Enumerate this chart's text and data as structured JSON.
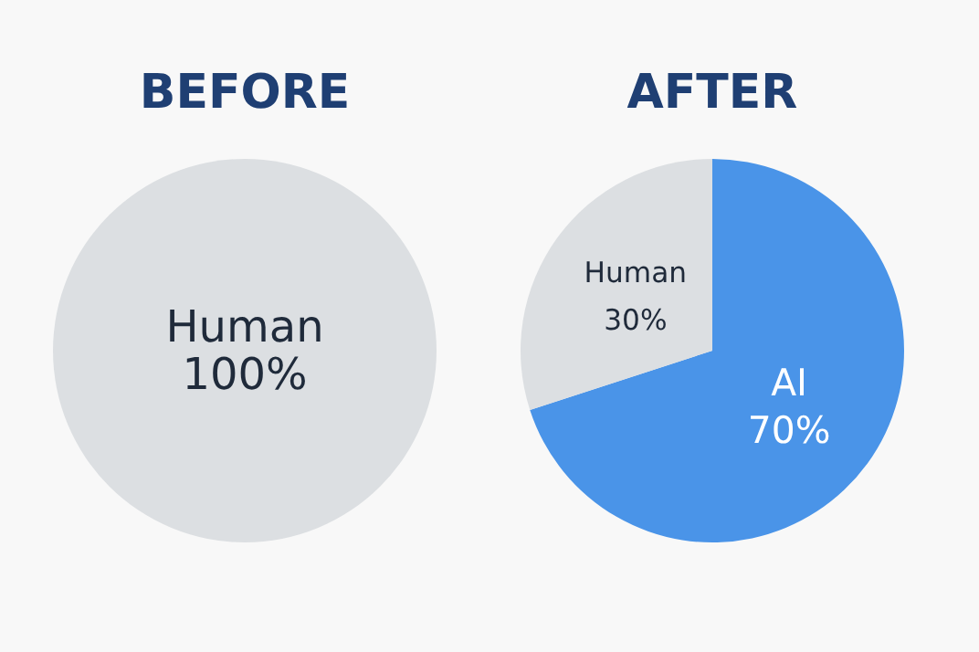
{
  "chart_data": [
    {
      "type": "pie",
      "title": "BEFORE",
      "categories": [
        "Human"
      ],
      "values": [
        100
      ],
      "colors": [
        "#dcdfe2"
      ],
      "value_labels": [
        "100%"
      ]
    },
    {
      "type": "pie",
      "title": "AFTER",
      "categories": [
        "AI",
        "Human"
      ],
      "values": [
        70,
        30
      ],
      "colors": [
        "#4a94e8",
        "#dcdfe2"
      ],
      "value_labels": [
        "70%",
        "30%"
      ]
    }
  ]
}
